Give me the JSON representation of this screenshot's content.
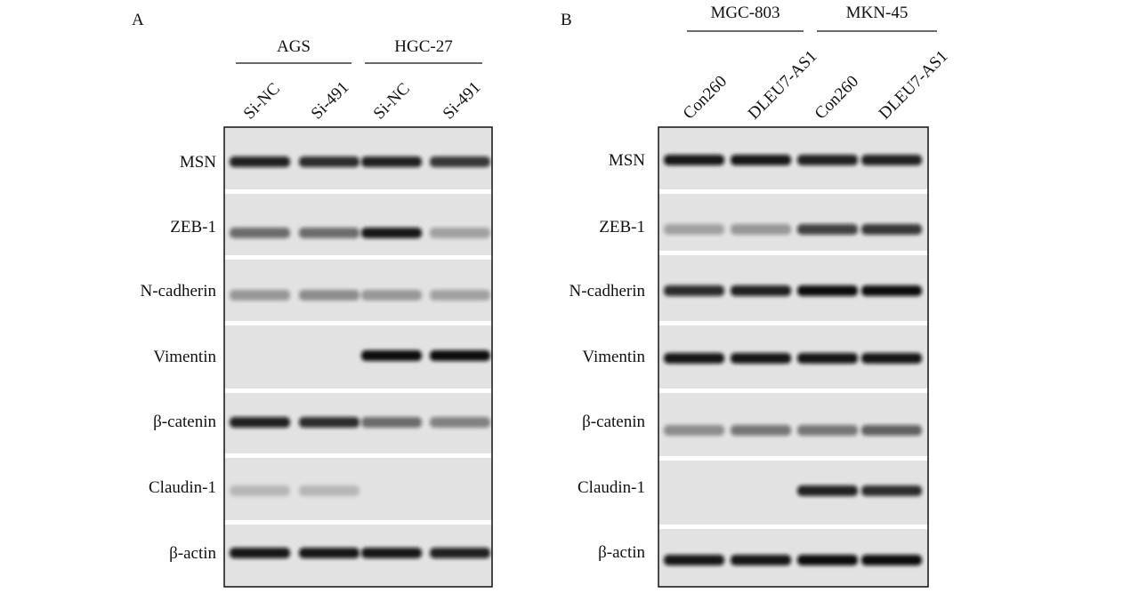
{
  "panels": [
    {
      "label": "A",
      "groups": [
        {
          "name": "AGS"
        },
        {
          "name": "HGC-27"
        }
      ],
      "lanes": [
        "Si-NC",
        "Si-491",
        "Si-NC",
        "Si-491"
      ],
      "rows": [
        "MSN",
        "ZEB-1",
        "N-cadherin",
        "Vimentin",
        "β-catenin",
        "Claudin-1",
        "β-actin"
      ]
    },
    {
      "label": "B",
      "groups": [
        {
          "name": "MGC-803"
        },
        {
          "name": "MKN-45"
        }
      ],
      "lanes": [
        "Con260",
        "DLEU7-AS1",
        "Con260",
        "DLEU7-AS1"
      ],
      "rows": [
        "MSN",
        "ZEB-1",
        "N-cadherin",
        "Vimentin",
        "β-catenin",
        "Claudin-1",
        "β-actin"
      ]
    }
  ]
}
